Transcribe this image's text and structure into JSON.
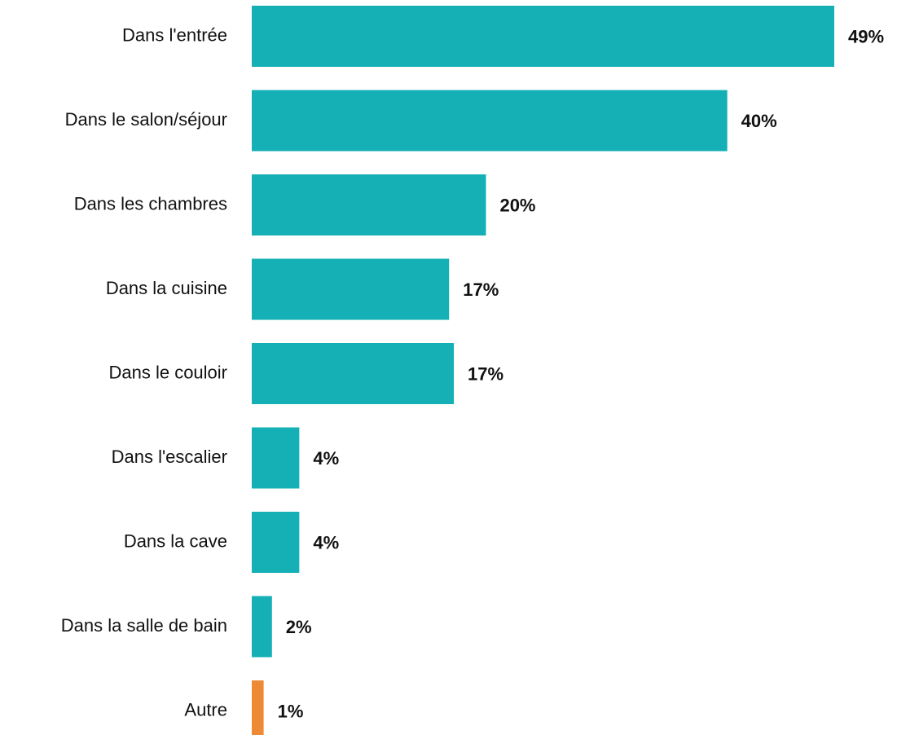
{
  "chart_data": {
    "type": "bar",
    "orientation": "horizontal",
    "categories": [
      "Dans l'entrée",
      "Dans le salon/séjour",
      "Dans les chambres",
      "Dans la cuisine",
      "Dans le couloir",
      "Dans l'escalier",
      "Dans la cave",
      "Dans la salle de bain",
      "Autre"
    ],
    "values": [
      49,
      40,
      19.7,
      16.6,
      17,
      4,
      4,
      1.7,
      1
    ],
    "value_labels": [
      "49%",
      "40%",
      "20%",
      "17%",
      "17%",
      "4%",
      "4%",
      "2%",
      "1%"
    ],
    "colors": [
      "#14b0b5",
      "#14b0b5",
      "#14b0b5",
      "#14b0b5",
      "#14b0b5",
      "#14b0b5",
      "#14b0b5",
      "#14b0b5",
      "#ec8a35"
    ]
  }
}
